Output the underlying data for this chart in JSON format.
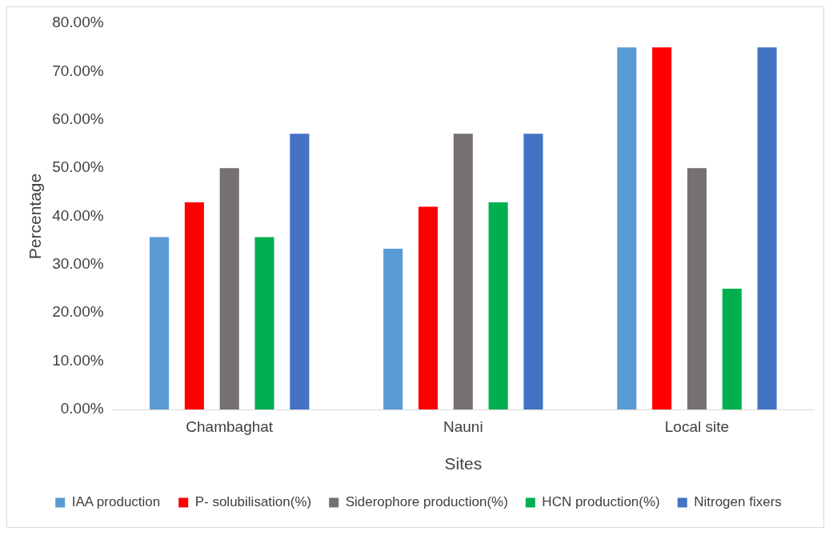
{
  "chart_data": {
    "type": "bar",
    "xlabel": "Sites",
    "ylabel": "Percentage",
    "categories": [
      "Chambaghat",
      "Nauni",
      "Local site"
    ],
    "series": [
      {
        "name": "IAA production",
        "color": "#5b9bd5",
        "values": [
          35.7,
          33.3,
          75
        ]
      },
      {
        "name": "P- solubilisation(%)",
        "color": "#ff0000",
        "values": [
          42.9,
          42.0,
          75
        ]
      },
      {
        "name": "Siderophore production(%)",
        "color": "#767171",
        "values": [
          50,
          57.1,
          50
        ]
      },
      {
        "name": "HCN production(%)",
        "color": "#00b050",
        "values": [
          35.7,
          42.9,
          25
        ]
      },
      {
        "name": "Nitrogen fixers",
        "color": "#4472c4",
        "values": [
          57.1,
          57.1,
          75
        ]
      }
    ],
    "ylim": [
      0,
      80
    ],
    "yticks": [
      {
        "value": 0,
        "label": "0.00%"
      },
      {
        "value": 10,
        "label": "10.00%"
      },
      {
        "value": 20,
        "label": "20.00%"
      },
      {
        "value": 30,
        "label": "30.00%"
      },
      {
        "value": 40,
        "label": "40.00%"
      },
      {
        "value": 50,
        "label": "50.00%"
      },
      {
        "value": 60,
        "label": "60.00%"
      },
      {
        "value": 70,
        "label": "70.00%"
      },
      {
        "value": 80,
        "label": "80.00%"
      }
    ],
    "grid": false,
    "legend": "bottom"
  }
}
